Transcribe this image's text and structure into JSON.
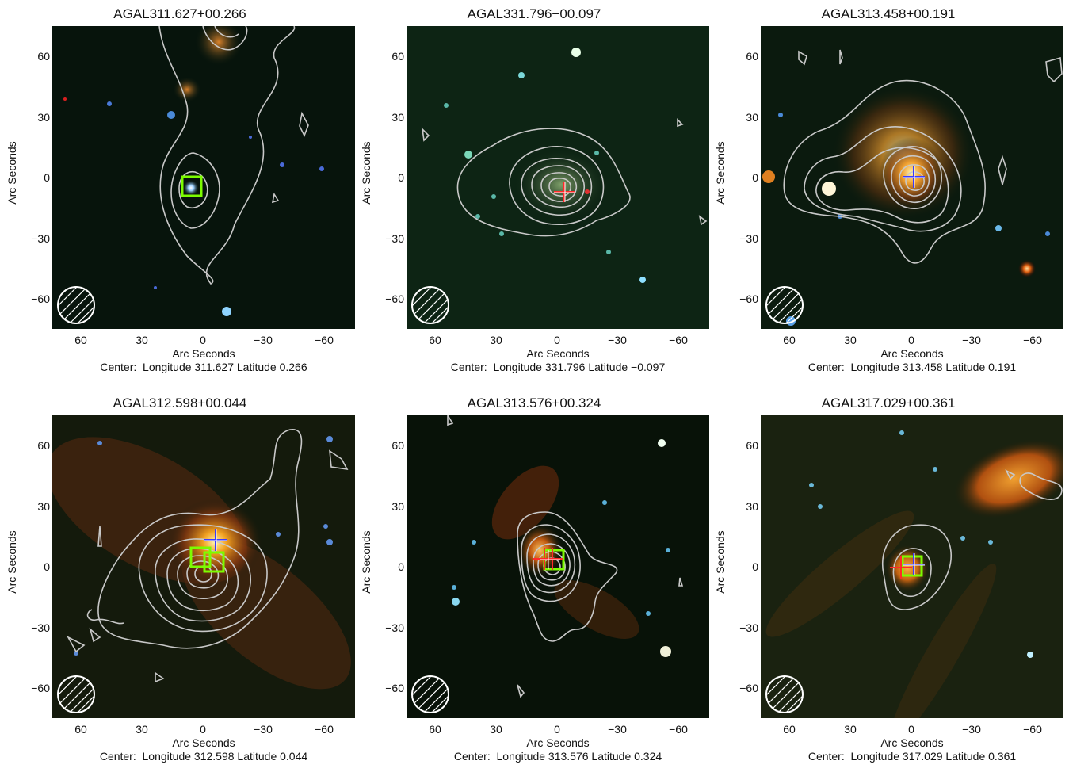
{
  "axis": {
    "y_ticks": [
      "60",
      "30",
      "0",
      "−30",
      "−60"
    ],
    "x_ticks": [
      "60",
      "30",
      "0",
      "−30",
      "−60"
    ],
    "x_label": "Arc Seconds",
    "y_label": "Arc Seconds"
  },
  "panels": [
    {
      "title": "AGAL311.627+00.266",
      "center": "Center:  Longitude 311.627 Latitude 0.266"
    },
    {
      "title": "AGAL331.796−00.097",
      "center": "Center:  Longitude 331.796 Latitude −0.097"
    },
    {
      "title": "AGAL313.458+00.191",
      "center": "Center:  Longitude 313.458 Latitude 0.191"
    },
    {
      "title": "AGAL312.598+00.044",
      "center": "Center:  Longitude 312.598 Latitude 0.044"
    },
    {
      "title": "AGAL313.576+00.324",
      "center": "Center:  Longitude 313.576 Latitude 0.324"
    },
    {
      "title": "AGAL317.029+00.361",
      "center": "Center:  Longitude 317.029 Latitude 0.361"
    }
  ],
  "colors": {
    "contour": "#c8c8c8",
    "marker_box": "#7cfc00",
    "marker_red": "#ff2a2a",
    "marker_blue": "#3a3aff",
    "beam": "#ffffff"
  }
}
